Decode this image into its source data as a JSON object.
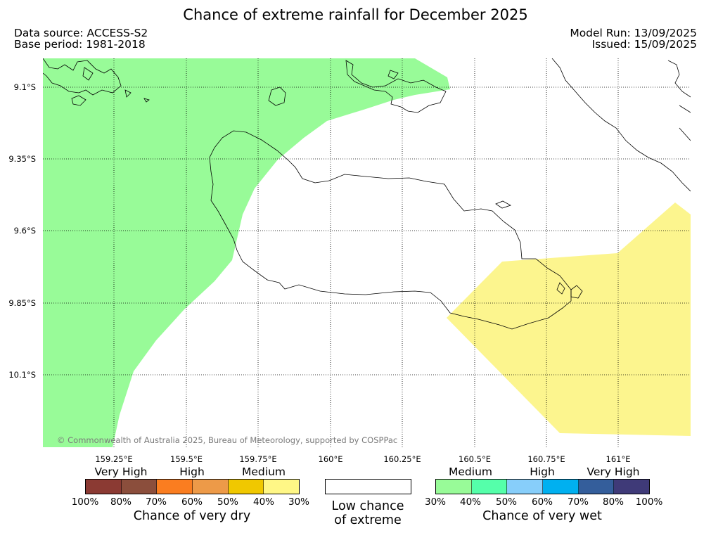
{
  "title": "Chance of extreme rainfall for December 2025",
  "meta": {
    "data_source": "Data source: ACCESS-S2",
    "base_period": "Base period: 1981-2018",
    "model_run": "Model Run: 13/09/2025",
    "issued": "Issued: 15/09/2025"
  },
  "map": {
    "lat_labels": [
      "9.1°S",
      "9.35°S",
      "9.6°S",
      "9.85°S",
      "10.1°S"
    ],
    "lon_labels": [
      "159.25°E",
      "159.5°E",
      "159.75°E",
      "160°E",
      "160.25°E",
      "160.5°E",
      "160.75°E",
      "161°E"
    ],
    "very_dry_color": "#98fb98",
    "very_wet_color": "#fcf58e",
    "copyright": "© Commonwealth of Australia 2025, Bureau of Meteorology, supported by COSPPac"
  },
  "legend": {
    "dry": {
      "heads": [
        "Very High",
        "High",
        "Medium"
      ],
      "colors": [
        "#8b3a33",
        "#8b4e3c",
        "#fa7d20",
        "#ed9a48",
        "#f0c800",
        "#fff786"
      ],
      "ticks": [
        "100%",
        "80%",
        "70%",
        "60%",
        "50%",
        "40%",
        "30%"
      ],
      "caption": "Chance of very dry"
    },
    "low": {
      "caption_line1": "Low chance",
      "caption_line2": "of extreme",
      "color": "#ffffff"
    },
    "wet": {
      "heads": [
        "Medium",
        "High",
        "Very High"
      ],
      "colors": [
        "#98fb98",
        "#55ffaa",
        "#87cefa",
        "#00b0f0",
        "#345e9b",
        "#3f3a78"
      ],
      "ticks": [
        "30%",
        "40%",
        "50%",
        "60%",
        "70%",
        "80%",
        "100%"
      ],
      "caption": "Chance of very wet"
    }
  }
}
